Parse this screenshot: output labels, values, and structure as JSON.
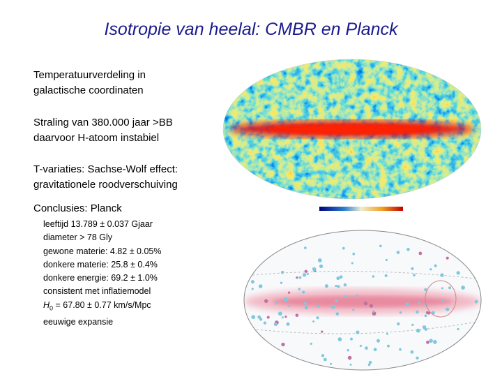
{
  "header": {
    "title": "Isotropie van heelal: CMBR en Planck"
  },
  "paragraphs": [
    [
      "Temperatuurverdeling in",
      "galactische coordinaten"
    ],
    [
      "Straling van 380.000 jaar >BB",
      "daarvoor H-atoom instabiel"
    ],
    [
      "T-variaties: Sachse-Wolf effect:",
      "gravitationele roodverschuiving"
    ]
  ],
  "conclusions": {
    "heading": "Conclusies: Planck",
    "items": [
      "leeftijd 13.789 ± 0.037 Gjaar",
      "diameter > 78 Gly",
      "gewone materie: 4.82 ± 0.05%",
      "donkere materie: 25.8 ± 0.4%",
      "donkere energie: 69.2 ± 1.0%",
      "consistent met inflatiemodel"
    ],
    "hubble": {
      "symbol": "H",
      "subscript": "0",
      "text": " = 67.80 ± 0.77 km/s/Mpc"
    },
    "last": "eeuwige expansie"
  }
}
